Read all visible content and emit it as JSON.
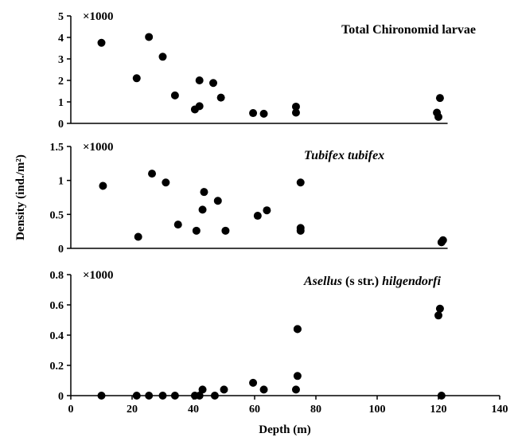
{
  "chart_data": {
    "type": "scatter",
    "ylabel": "Density (ind./m²)",
    "xlabel": "Depth (m)",
    "x_axis": {
      "range": [
        0,
        140
      ],
      "ticks": [
        0,
        20,
        40,
        60,
        80,
        100,
        120,
        140
      ]
    },
    "grid": false,
    "marker_color": "#000000",
    "panels": [
      {
        "title": "Total Chironomid larvae",
        "multiplier": "×1000",
        "ylim": [
          0,
          5
        ],
        "yticks": [
          0,
          1,
          2,
          3,
          4,
          5
        ],
        "ytick_labels": [
          "0",
          "1",
          "2",
          "3",
          "4",
          "5"
        ],
        "x": [
          10,
          21.5,
          25.5,
          30,
          34,
          40.5,
          42,
          42,
          46.5,
          49,
          59.5,
          63,
          73.5,
          73.5,
          119.5,
          120,
          120.5
        ],
        "y": [
          3.75,
          2.1,
          4.02,
          3.1,
          1.3,
          0.65,
          2.0,
          0.8,
          1.88,
          1.2,
          0.48,
          0.45,
          0.78,
          0.5,
          0.5,
          0.3,
          1.18
        ]
      },
      {
        "title_parts": [
          {
            "text": "Tubifex tubifex",
            "italic": true
          }
        ],
        "multiplier": "×1000",
        "ylim": [
          0,
          1.5
        ],
        "yticks": [
          0,
          0.5,
          1,
          1.5
        ],
        "ytick_labels": [
          "0",
          "0.5",
          "1",
          "1.5"
        ],
        "x": [
          10.5,
          22,
          26.5,
          31,
          35,
          41,
          43,
          43.5,
          48,
          50.5,
          61,
          64,
          75,
          75,
          75,
          121,
          121.5
        ],
        "y": [
          0.92,
          0.17,
          1.1,
          0.97,
          0.35,
          0.26,
          0.57,
          0.83,
          0.7,
          0.26,
          0.48,
          0.56,
          0.97,
          0.3,
          0.26,
          0.09,
          0.12
        ]
      },
      {
        "title_parts": [
          {
            "text": "Asellus",
            "italic": true
          },
          {
            "text": " (s str.) ",
            "italic": false
          },
          {
            "text": "hilgendorfi",
            "italic": true
          }
        ],
        "multiplier": "×1000",
        "ylim": [
          0,
          0.8
        ],
        "yticks": [
          0,
          0.2,
          0.4,
          0.6,
          0.8
        ],
        "ytick_labels": [
          "0",
          "0.2",
          "0.4",
          "0.6",
          "0.8"
        ],
        "x": [
          10,
          21.5,
          25.5,
          30,
          34,
          40.5,
          42,
          43,
          47,
          50,
          59.5,
          63,
          73.5,
          74,
          74,
          74,
          120,
          120.5,
          121
        ],
        "y": [
          0,
          0,
          0,
          0,
          0,
          0,
          0,
          0.04,
          0,
          0.04,
          0.085,
          0.04,
          0.04,
          0.13,
          0.44,
          0.44,
          0.53,
          0.575,
          0
        ]
      }
    ]
  }
}
